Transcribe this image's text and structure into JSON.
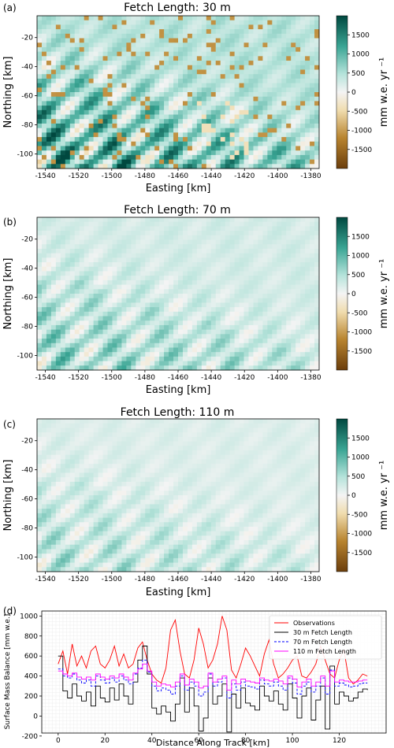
{
  "chart_data": [
    {
      "type": "heatmap",
      "panel_label": "(a)",
      "title": "Fetch Length: 30 m",
      "xlabel": "Easting [km]",
      "ylabel": "Northing [km]",
      "xlim": [
        -1545,
        -1375
      ],
      "ylim": [
        -110,
        -5
      ],
      "xticks": [
        "-1540",
        "-1520",
        "-1500",
        "-1480",
        "-1460",
        "-1440",
        "-1420",
        "-1400",
        "-1380"
      ],
      "yticks": [
        "-20",
        "-40",
        "-60",
        "-80",
        "-100"
      ],
      "colorbar": {
        "label": "mm w.e. yr ⁻¹",
        "range": [
          -2000,
          2000
        ],
        "ticks": [
          "1500",
          "1000",
          "500",
          "0",
          "-500",
          "-1000",
          "-1500"
        ],
        "low_color": "#7a4a12",
        "mid_color": "#f7f7f7",
        "high_color": "#00584e"
      },
      "amplitude": 1.0
    },
    {
      "type": "heatmap",
      "panel_label": "(b)",
      "title": "Fetch Length: 70 m",
      "xlabel": "Easting [km]",
      "ylabel": "Northing [km]",
      "xlim": [
        -1545,
        -1375
      ],
      "ylim": [
        -110,
        -5
      ],
      "xticks": [
        "-1540",
        "-1520",
        "-1500",
        "-1480",
        "-1460",
        "-1440",
        "-1420",
        "-1400",
        "-1380"
      ],
      "yticks": [
        "-20",
        "-40",
        "-60",
        "-80",
        "-100"
      ],
      "colorbar": {
        "label": "mm w.e. yr ⁻¹",
        "range": [
          -2000,
          2000
        ],
        "ticks": [
          "1500",
          "1000",
          "500",
          "0",
          "-500",
          "-1000",
          "-1500"
        ],
        "low_color": "#7a4a12",
        "mid_color": "#f7f7f7",
        "high_color": "#00584e"
      },
      "amplitude": 0.55
    },
    {
      "type": "heatmap",
      "panel_label": "(c)",
      "title": "Fetch Length: 110 m",
      "xlabel": "Easting [km]",
      "ylabel": "Northing [km]",
      "xlim": [
        -1545,
        -1375
      ],
      "ylim": [
        -110,
        -5
      ],
      "xticks": [
        "-1540",
        "-1520",
        "-1500",
        "-1480",
        "-1460",
        "-1440",
        "-1420",
        "-1400",
        "-1380"
      ],
      "yticks": [
        "-20",
        "-40",
        "-60",
        "-80",
        "-100"
      ],
      "colorbar": {
        "label": "mm w.e. yr ⁻¹",
        "range": [
          -2000,
          2000
        ],
        "ticks": [
          "1500",
          "1000",
          "500",
          "0",
          "-500",
          "-1000",
          "-1500"
        ],
        "low_color": "#7a4a12",
        "mid_color": "#f7f7f7",
        "high_color": "#00584e"
      },
      "amplitude": 0.4
    },
    {
      "type": "line",
      "panel_label": "(d)",
      "xlabel": "Distance Along Track [km]",
      "ylabel": "Surface Mass Balance [mm w.e.]",
      "xlim": [
        -7,
        140
      ],
      "ylim": [
        -170,
        1050
      ],
      "xticks": [
        "0",
        "20",
        "40",
        "60",
        "80",
        "100",
        "120"
      ],
      "yticks": [
        "1000",
        "800",
        "600",
        "400",
        "200",
        "0",
        "-200"
      ],
      "grid": true,
      "legend_position": "top-right",
      "series": [
        {
          "name": "Observations",
          "color": "#ff0000",
          "style": "solid",
          "x": [
            0,
            2,
            4,
            6,
            8,
            10,
            12,
            14,
            16,
            18,
            20,
            22,
            24,
            26,
            28,
            30,
            32,
            34,
            36,
            38,
            40,
            42,
            44,
            46,
            48,
            50,
            52,
            54,
            56,
            58,
            60,
            62,
            64,
            66,
            68,
            70,
            72,
            74,
            76,
            78,
            80,
            82,
            84,
            86,
            88,
            90,
            92,
            94,
            96,
            98,
            100,
            102,
            104,
            106,
            108,
            110,
            112,
            114,
            116,
            118,
            120,
            122,
            124,
            126,
            128,
            130,
            132
          ],
          "values": [
            520,
            650,
            420,
            720,
            500,
            600,
            480,
            650,
            700,
            520,
            480,
            560,
            700,
            500,
            620,
            480,
            520,
            680,
            740,
            560,
            420,
            360,
            330,
            480,
            860,
            960,
            650,
            420,
            380,
            560,
            880,
            720,
            480,
            560,
            720,
            1000,
            860,
            460,
            380,
            520,
            680,
            600,
            500,
            400,
            620,
            760,
            520,
            380,
            420,
            480,
            560,
            600,
            400,
            380,
            440,
            520,
            700,
            560,
            420,
            380,
            560,
            660,
            380,
            320,
            360,
            420,
            400
          ]
        },
        {
          "name": "30 m Fetch Length",
          "color": "#000000",
          "style": "steps",
          "x": [
            0,
            2,
            4,
            6,
            8,
            10,
            12,
            14,
            16,
            18,
            20,
            22,
            24,
            26,
            28,
            30,
            32,
            34,
            36,
            38,
            40,
            42,
            44,
            46,
            48,
            50,
            52,
            54,
            56,
            58,
            60,
            62,
            64,
            66,
            68,
            70,
            72,
            74,
            76,
            78,
            80,
            82,
            84,
            86,
            88,
            90,
            92,
            94,
            96,
            98,
            100,
            102,
            104,
            106,
            108,
            110,
            112,
            114,
            116,
            118,
            120,
            122,
            124,
            126,
            128,
            130,
            132
          ],
          "values": [
            600,
            250,
            180,
            320,
            200,
            150,
            240,
            100,
            300,
            180,
            140,
            280,
            160,
            320,
            200,
            120,
            340,
            560,
            700,
            420,
            80,
            20,
            100,
            40,
            -50,
            120,
            380,
            40,
            280,
            100,
            -150,
            -20,
            380,
            120,
            200,
            320,
            -160,
            220,
            80,
            280,
            130,
            100,
            60,
            300,
            200,
            150,
            250,
            120,
            60,
            320,
            180,
            -20,
            200,
            280,
            -40,
            160,
            300,
            -130,
            500,
            120,
            240,
            200,
            150,
            180,
            240,
            270,
            260
          ]
        },
        {
          "name": "70 m Fetch Length",
          "color": "#0000ff",
          "style": "dashed-steps",
          "x": [
            0,
            2,
            4,
            6,
            8,
            10,
            12,
            14,
            16,
            18,
            20,
            22,
            24,
            26,
            28,
            30,
            32,
            34,
            36,
            38,
            40,
            42,
            44,
            46,
            48,
            50,
            52,
            54,
            56,
            58,
            60,
            62,
            64,
            66,
            68,
            70,
            72,
            74,
            76,
            78,
            80,
            82,
            84,
            86,
            88,
            90,
            92,
            94,
            96,
            98,
            100,
            102,
            104,
            106,
            108,
            110,
            112,
            114,
            116,
            118,
            120,
            122,
            124,
            126,
            128,
            130,
            132
          ],
          "values": [
            470,
            400,
            380,
            420,
            360,
            330,
            360,
            300,
            400,
            360,
            330,
            380,
            340,
            400,
            360,
            320,
            420,
            480,
            560,
            440,
            300,
            250,
            280,
            260,
            220,
            300,
            400,
            260,
            340,
            300,
            200,
            240,
            420,
            300,
            340,
            380,
            180,
            320,
            260,
            340,
            300,
            290,
            270,
            360,
            320,
            300,
            340,
            300,
            260,
            380,
            330,
            220,
            300,
            340,
            240,
            300,
            380,
            220,
            460,
            300,
            330,
            310,
            290,
            300,
            320,
            330,
            330
          ]
        },
        {
          "name": "110 m Fetch Length",
          "color": "#ff00ff",
          "style": "steps",
          "x": [
            0,
            2,
            4,
            6,
            8,
            10,
            12,
            14,
            16,
            18,
            20,
            22,
            24,
            26,
            28,
            30,
            32,
            34,
            36,
            38,
            40,
            42,
            44,
            46,
            48,
            50,
            52,
            54,
            56,
            58,
            60,
            62,
            64,
            66,
            68,
            70,
            72,
            74,
            76,
            78,
            80,
            82,
            84,
            86,
            88,
            90,
            92,
            94,
            96,
            98,
            100,
            102,
            104,
            106,
            108,
            110,
            112,
            114,
            116,
            118,
            120,
            122,
            124,
            126,
            128,
            130,
            132
          ],
          "values": [
            450,
            420,
            400,
            430,
            390,
            370,
            390,
            360,
            420,
            390,
            370,
            400,
            380,
            420,
            390,
            360,
            430,
            470,
            520,
            450,
            340,
            300,
            320,
            310,
            290,
            340,
            420,
            310,
            370,
            340,
            280,
            300,
            430,
            340,
            370,
            400,
            260,
            360,
            320,
            370,
            350,
            340,
            330,
            380,
            360,
            350,
            370,
            350,
            320,
            400,
            370,
            290,
            340,
            370,
            300,
            340,
            400,
            300,
            450,
            340,
            360,
            350,
            340,
            340,
            350,
            360,
            360
          ]
        }
      ]
    }
  ]
}
